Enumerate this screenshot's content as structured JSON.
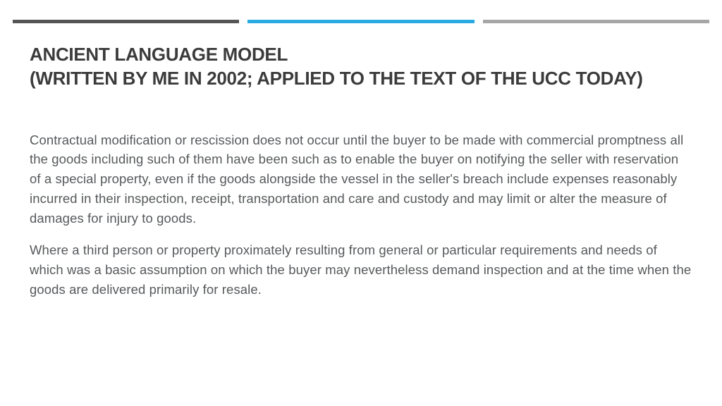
{
  "bars": {
    "color1": "#555555",
    "color2": "#29abe2",
    "color3": "#a6a6a6"
  },
  "title_line1": "ANCIENT LANGUAGE MODEL",
  "title_line2": "(WRITTEN BY ME IN 2002; APPLIED TO THE TEXT OF THE UCC TODAY)",
  "paragraph1": "Contractual modification or rescission does not occur until the buyer to be made with commercial promptness all the goods including such of them have been such as to enable the buyer on notifying the seller with reservation of a special property, even if the goods alongside the vessel in the seller's breach include expenses reasonably incurred in their inspection, receipt, transportation and care and custody and may limit or alter the measure of damages for injury to goods.",
  "paragraph2": "Where a third person or property proximately resulting from general or particular requirements and needs of which was a basic assumption on which the buyer may nevertheless demand inspection and at the time when the goods are delivered primarily for resale."
}
